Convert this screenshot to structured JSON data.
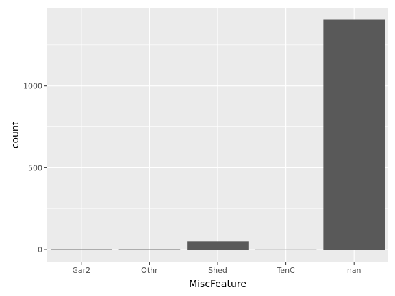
{
  "chart_data": {
    "type": "bar",
    "title": "",
    "xlabel": "MiscFeature",
    "ylabel": "count",
    "categories": [
      "Gar2",
      "Othr",
      "Shed",
      "TenC",
      "nan"
    ],
    "values": [
      2,
      2,
      49,
      1,
      1406
    ],
    "ylim": [
      -75,
      1475
    ],
    "yticks": [
      0,
      500,
      1000
    ],
    "ytick_labels": [
      "0",
      "500",
      "1000"
    ],
    "grid": true,
    "legend": "none",
    "colors": {
      "panel": "#EBEBEB",
      "grid_major": "#FFFFFF",
      "bar": "#595959",
      "tick": "#333333"
    }
  }
}
